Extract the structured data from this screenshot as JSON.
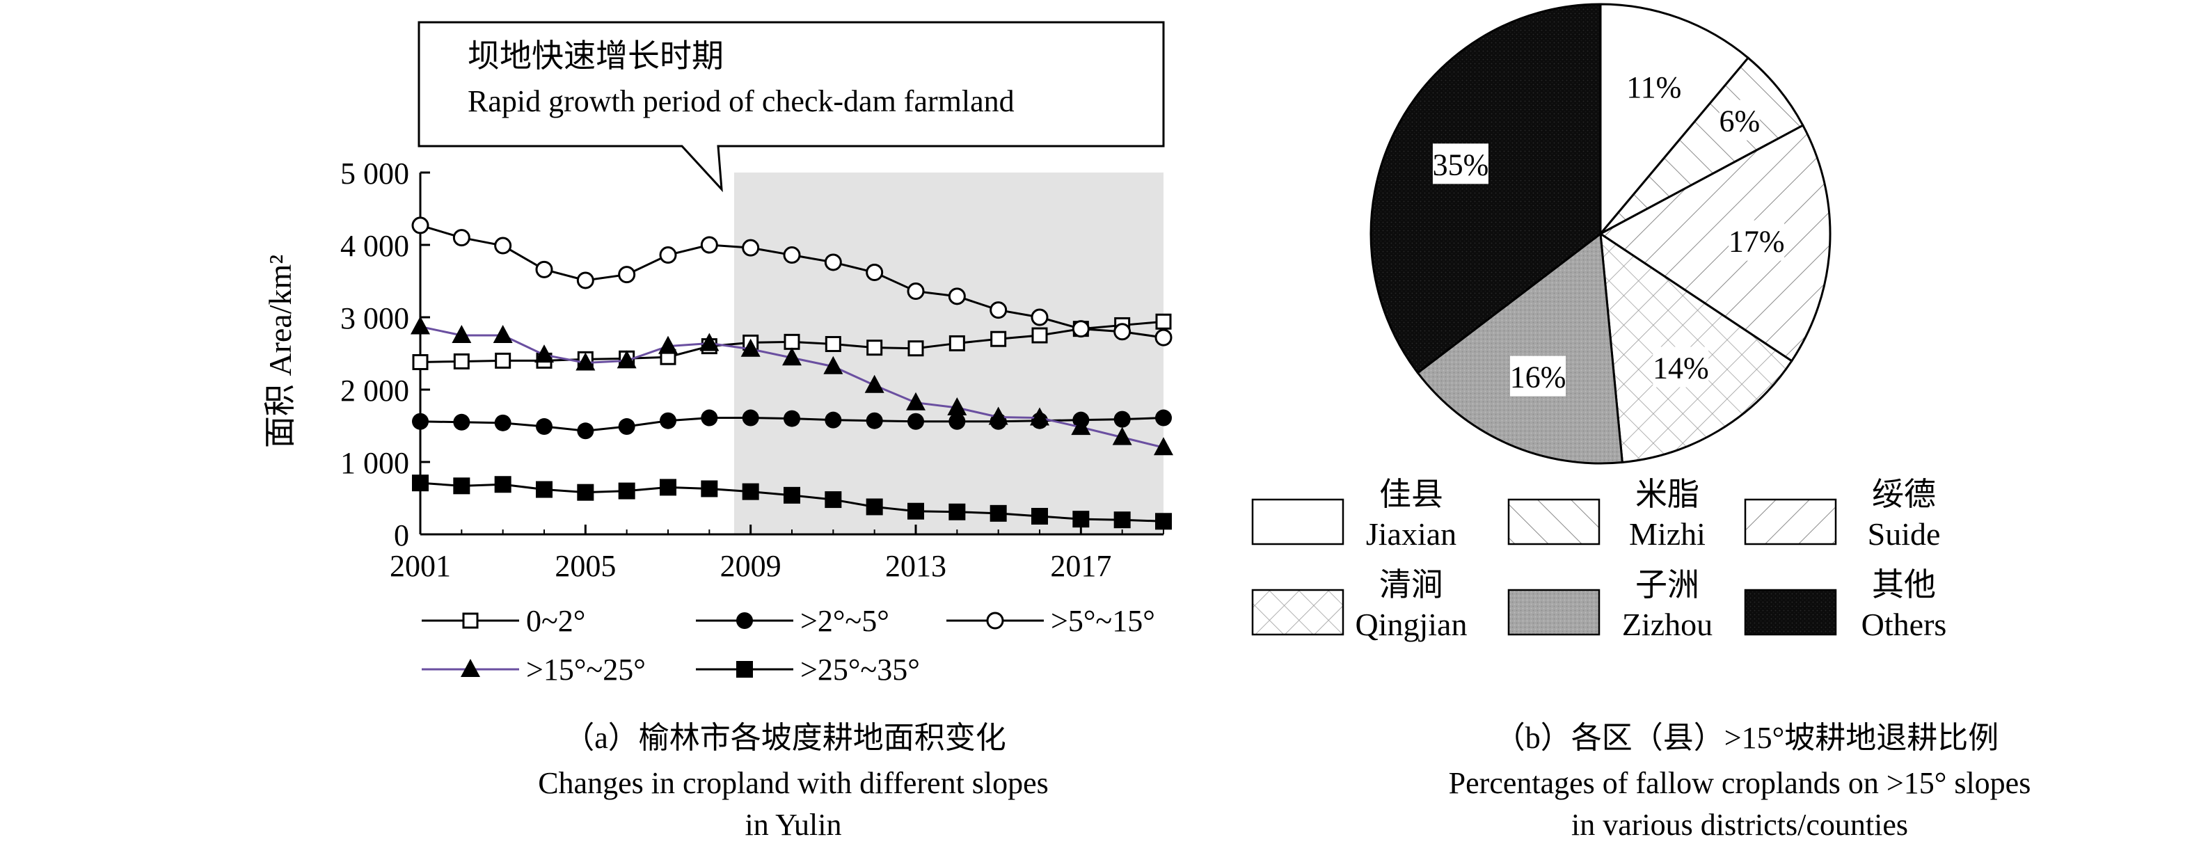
{
  "callout": {
    "line1": "坝地快速增长时期",
    "line2": "Rapid growth period of check-dam farmland"
  },
  "chart_data": [
    {
      "type": "line",
      "ylabel": "面积 Area/km²",
      "ylim": [
        0,
        5000
      ],
      "yticks": [
        0,
        1000,
        2000,
        3000,
        4000,
        5000
      ],
      "ytick_labels": [
        "0",
        "1 000",
        "2 000",
        "3 000",
        "4 000",
        "5 000"
      ],
      "xlim": [
        2001,
        2019
      ],
      "xticks": [
        2001,
        2005,
        2009,
        2013,
        2017
      ],
      "xtick_labels": [
        "2001",
        "2005",
        "2009",
        "2013",
        "2017"
      ],
      "shaded_region": [
        2008.6,
        2019
      ],
      "x": [
        2001,
        2002,
        2003,
        2004,
        2005,
        2006,
        2007,
        2008,
        2009,
        2010,
        2011,
        2012,
        2013,
        2014,
        2015,
        2016,
        2017,
        2018,
        2019
      ],
      "series": [
        {
          "name": "0~2°",
          "marker": "open-square",
          "color": "#000000",
          "values": [
            2380,
            2390,
            2400,
            2400,
            2420,
            2430,
            2450,
            2600,
            2650,
            2660,
            2630,
            2580,
            2570,
            2640,
            2700,
            2750,
            2840,
            2890,
            2940
          ]
        },
        {
          "name": ">2°~5°",
          "marker": "filled-circle",
          "color": "#000000",
          "values": [
            1560,
            1550,
            1540,
            1490,
            1430,
            1490,
            1570,
            1610,
            1610,
            1600,
            1580,
            1570,
            1560,
            1560,
            1560,
            1570,
            1580,
            1590,
            1610
          ]
        },
        {
          "name": ">5°~15°",
          "marker": "open-circle",
          "color": "#000000",
          "values": [
            4270,
            4100,
            3990,
            3660,
            3510,
            3590,
            3860,
            4000,
            3960,
            3860,
            3760,
            3620,
            3360,
            3290,
            3100,
            3000,
            2840,
            2800,
            2720
          ]
        },
        {
          "name": ">15°~25°",
          "marker": "filled-triangle",
          "color": "#6a4fa0",
          "values": [
            2870,
            2750,
            2750,
            2480,
            2370,
            2400,
            2600,
            2640,
            2560,
            2440,
            2320,
            2060,
            1820,
            1750,
            1620,
            1610,
            1480,
            1340,
            1200
          ]
        },
        {
          "name": ">25°~35°",
          "marker": "filled-square",
          "color": "#000000",
          "values": [
            710,
            670,
            690,
            620,
            580,
            600,
            650,
            630,
            590,
            540,
            480,
            380,
            320,
            310,
            290,
            250,
            210,
            200,
            180
          ]
        }
      ],
      "caption": {
        "line1": "（a）榆林市各坡度耕地面积变化",
        "line2": "Changes in cropland with different slopes",
        "line3": "in Yulin"
      }
    },
    {
      "type": "pie",
      "slices": [
        {
          "cn": "佳县",
          "en": "Jiaxian",
          "value": 11,
          "label": "11%",
          "pattern": "white"
        },
        {
          "cn": "米脂",
          "en": "Mizhi",
          "value": 6,
          "label": "6%",
          "pattern": "forward-hatch"
        },
        {
          "cn": "绥德",
          "en": "Suide",
          "value": 17,
          "label": "17%",
          "pattern": "back-hatch"
        },
        {
          "cn": "清涧",
          "en": "Qingjian",
          "value": 14,
          "label": "14%",
          "pattern": "cross-hatch"
        },
        {
          "cn": "子洲",
          "en": "Zizhou",
          "value": 16,
          "label": "16%",
          "pattern": "gray"
        },
        {
          "cn": "其他",
          "en": "Others",
          "value": 35,
          "label": "35%",
          "pattern": "black"
        }
      ],
      "caption": {
        "line1": "（b）各区（县）>15°坡耕地退耕比例",
        "line2": "Percentages of fallow croplands on >15° slopes",
        "line3": "in various districts/counties"
      }
    }
  ]
}
